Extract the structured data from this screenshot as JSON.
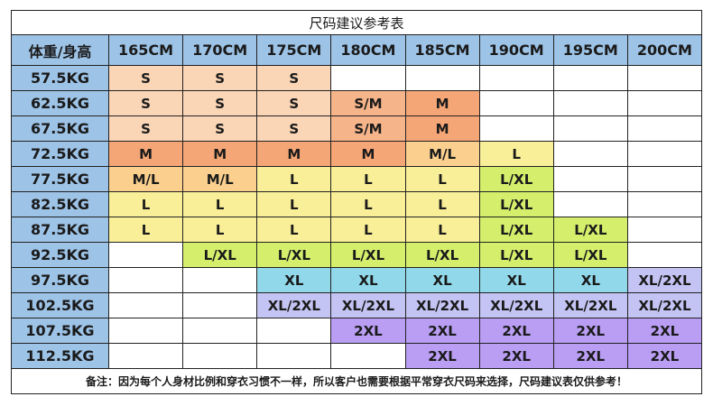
{
  "title": "尺码建议参考表",
  "corner_label": "体重/身高",
  "heights": [
    "165CM",
    "170CM",
    "175CM",
    "180CM",
    "185CM",
    "190CM",
    "195CM",
    "200CM"
  ],
  "rows": [
    {
      "weight": "57.5KG",
      "sizes": [
        "S",
        "S",
        "S",
        "",
        "",
        "",
        "",
        ""
      ]
    },
    {
      "weight": "62.5KG",
      "sizes": [
        "S",
        "S",
        "S",
        "S/M",
        "M",
        "",
        "",
        ""
      ]
    },
    {
      "weight": "67.5KG",
      "sizes": [
        "S",
        "S",
        "S",
        "S/M",
        "M",
        "",
        "",
        ""
      ]
    },
    {
      "weight": "72.5KG",
      "sizes": [
        "M",
        "M",
        "M",
        "M",
        "M/L",
        "L",
        "",
        ""
      ]
    },
    {
      "weight": "77.5KG",
      "sizes": [
        "M/L",
        "M/L",
        "L",
        "L",
        "L",
        "L/XL",
        "",
        ""
      ]
    },
    {
      "weight": "82.5KG",
      "sizes": [
        "L",
        "L",
        "L",
        "L",
        "L",
        "L/XL",
        "",
        ""
      ]
    },
    {
      "weight": "87.5KG",
      "sizes": [
        "L",
        "L",
        "L",
        "L",
        "L",
        "L/XL",
        "L/XL",
        ""
      ]
    },
    {
      "weight": "92.5KG",
      "sizes": [
        "",
        "L/XL",
        "L/XL",
        "L/XL",
        "L/XL",
        "L/XL",
        "L/XL",
        ""
      ]
    },
    {
      "weight": "97.5KG",
      "sizes": [
        "",
        "",
        "XL",
        "XL",
        "XL",
        "XL",
        "XL",
        "XL/2XL"
      ]
    },
    {
      "weight": "102.5KG",
      "sizes": [
        "",
        "",
        "XL/2XL",
        "XL/2XL",
        "XL/2XL",
        "XL/2XL",
        "XL/2XL",
        "XL/2XL"
      ]
    },
    {
      "weight": "107.5KG",
      "sizes": [
        "",
        "",
        "",
        "2XL",
        "2XL",
        "2XL",
        "2XL",
        "2XL"
      ]
    },
    {
      "weight": "112.5KG",
      "sizes": [
        "",
        "",
        "",
        "",
        "2XL",
        "2XL",
        "2XL",
        "2XL"
      ]
    }
  ],
  "size_colors": {
    "S": "#fad5b6",
    "S/M": "#f6b48a",
    "M": "#f4a676",
    "M/L": "#fbd08f",
    "L": "#f9ef98",
    "L/XL": "#d5ee6c",
    "XL": "#90d8ea",
    "XL/2XL": "#c4c4f4",
    "2XL": "#b99ef3",
    "": "#ffffff"
  },
  "footnote": "备注：因为每个人身材比例和穿衣习惯不一样，所以客户也需要根据平常穿衣尺码来选择，尺码建议表仅供参考！"
}
